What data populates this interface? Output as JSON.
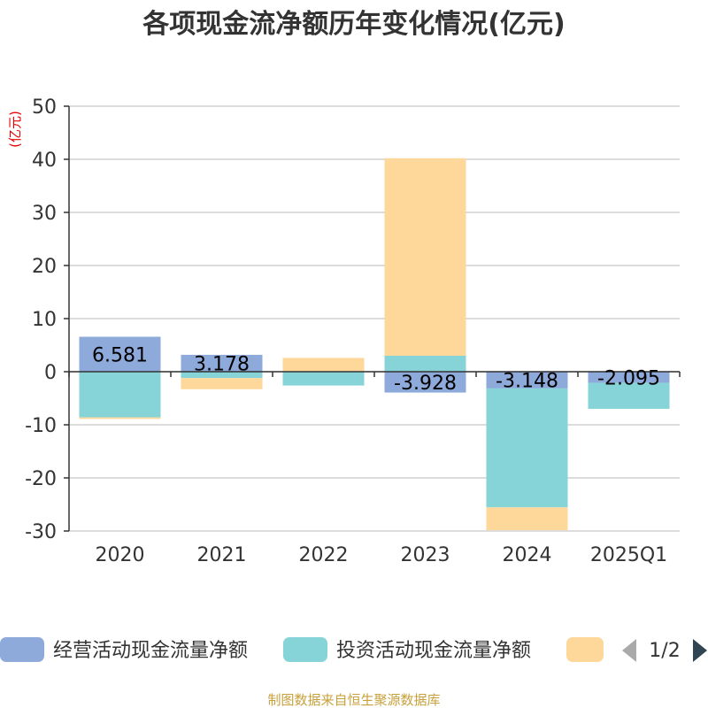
{
  "chart_data": {
    "type": "bar",
    "stacked": true,
    "title": "各项现金流净额历年变化情况(亿元)",
    "y_unit": "(亿元)",
    "categories": [
      "2020",
      "2021",
      "2022",
      "2023",
      "2024",
      "2025Q1"
    ],
    "ylim": [
      -30,
      50
    ],
    "yticks": [
      50,
      40,
      30,
      20,
      10,
      0,
      -10,
      -20,
      -30
    ],
    "grid": true,
    "series": [
      {
        "name": "经营活动现金流量净额",
        "color": "#8eaadb",
        "values": [
          6.581,
          3.178,
          0.1,
          -3.928,
          -3.148,
          -2.095
        ],
        "labels": [
          "6.581",
          "3.178",
          "",
          "-3.928",
          "-3.148",
          "-2.095"
        ]
      },
      {
        "name": "投资活动现金流量净额",
        "color": "#86d4d8",
        "values": [
          -8.6,
          -1.2,
          -2.6,
          3.0,
          -22.4,
          -4.9
        ]
      },
      {
        "name": "",
        "color": "#fed79a",
        "values": [
          -0.3,
          -2.1,
          2.5,
          37.2,
          -4.3,
          0.0
        ]
      }
    ],
    "legend": {
      "position": "bottom",
      "page": "1/2"
    },
    "source": "制图数据来自恒生聚源数据库"
  }
}
